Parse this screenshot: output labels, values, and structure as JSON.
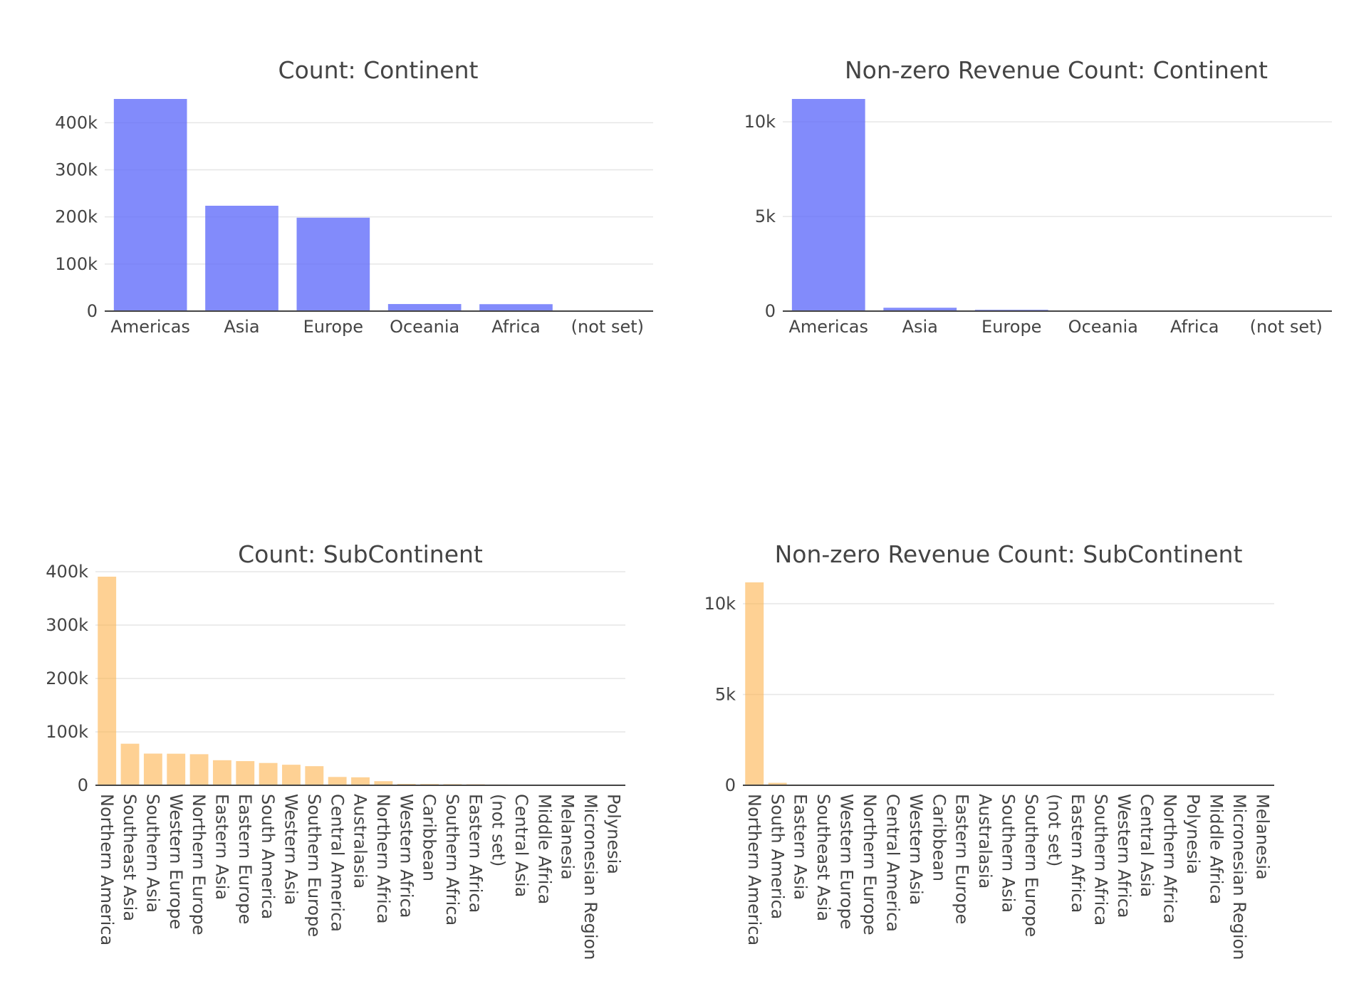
{
  "chart_data": [
    {
      "type": "bar",
      "title": "Count: Continent",
      "xlabel": "",
      "ylabel": "",
      "categories": [
        "Americas",
        "Asia",
        "Europe",
        "Oceania",
        "Africa",
        "(not set)"
      ],
      "values": [
        450377,
        223698,
        198311,
        15054,
        14745,
        1468
      ],
      "ylim": [
        0,
        450377
      ],
      "yticks": [
        0,
        100000,
        200000,
        300000,
        400000
      ],
      "ytick_labels": [
        "0",
        "100k",
        "200k",
        "300k",
        "400k"
      ],
      "grid": true,
      "color": "#636efa",
      "opacity": 0.8
    },
    {
      "type": "bar",
      "title": "Non-zero Revenue Count: Continent",
      "xlabel": "",
      "ylabel": "",
      "categories": [
        "Americas",
        "Asia",
        "Europe",
        "Oceania",
        "Africa",
        "(not set)"
      ],
      "values": [
        11209,
        178,
        70,
        23,
        20,
        15
      ],
      "ylim": [
        0,
        11209
      ],
      "yticks": [
        0,
        5000,
        10000
      ],
      "ytick_labels": [
        "0",
        "5k",
        "10k"
      ],
      "grid": true,
      "color": "#636efa",
      "opacity": 0.8
    },
    {
      "type": "bar",
      "title": "Count: SubContinent",
      "xlabel": "",
      "ylabel": "",
      "categories": [
        "Northern America",
        "Southeast Asia",
        "Southern Asia",
        "Western Europe",
        "Northern Europe",
        "Eastern Asia",
        "Eastern Europe",
        "South America",
        "Western Asia",
        "Southern Europe",
        "Central America",
        "Australasia",
        "Northern Africa",
        "Western Africa",
        "Caribbean",
        "Southern Africa",
        "Eastern Africa",
        "(not set)",
        "Central Asia",
        "Middle Africa",
        "Melanesia",
        "Micronesian Region",
        "Polynesia"
      ],
      "values": [
        390657,
        77800,
        59321,
        59114,
        58168,
        46919,
        45249,
        41731,
        38443,
        35780,
        15583,
        14893,
        7683,
        2573,
        2406,
        2169,
        1927,
        1468,
        1215,
        393,
        94,
        59,
        8
      ],
      "ylim": [
        0,
        390657
      ],
      "yticks": [
        0,
        100000,
        200000,
        300000,
        400000
      ],
      "ytick_labels": [
        "0",
        "100k",
        "200k",
        "300k",
        "400k"
      ],
      "grid": true,
      "color": "#feb24c",
      "opacity": 0.6
    },
    {
      "type": "bar",
      "title": "Non-zero Revenue Count: SubContinent",
      "xlabel": "",
      "ylabel": "",
      "categories": [
        "Northern America",
        "South America",
        "Eastern Asia",
        "Southeast Asia",
        "Western Europe",
        "Northern Europe",
        "Central America",
        "Western Asia",
        "Caribbean",
        "Eastern Europe",
        "Australasia",
        "Southern Asia",
        "Southern Europe",
        "(not set)",
        "Eastern Africa",
        "Southern Africa",
        "Western Africa",
        "Central Asia",
        "Northern Africa",
        "Polynesia",
        "Middle Africa",
        "Micronesian Region",
        "Melanesia"
      ],
      "values": [
        11175,
        135,
        42,
        36,
        34,
        26,
        22,
        18,
        16,
        15,
        14,
        13,
        12,
        11,
        10,
        9,
        8,
        7,
        5,
        4,
        3,
        2,
        1
      ],
      "ylim": [
        0,
        11175
      ],
      "yticks": [
        0,
        5000,
        10000
      ],
      "ytick_labels": [
        "0",
        "5k",
        "10k"
      ],
      "grid": true,
      "color": "#feb24c",
      "opacity": 0.6
    }
  ]
}
